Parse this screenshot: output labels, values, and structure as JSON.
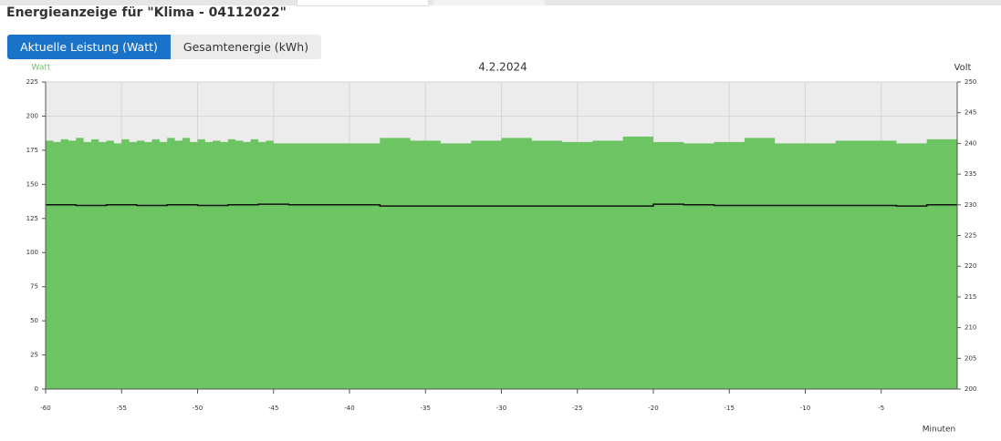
{
  "header": {
    "title": "Energieanzeige für \"Klima - 04112022\""
  },
  "tabs": [
    {
      "label": "Aktuelle Leistung (Watt)",
      "active": true
    },
    {
      "label": "Gesamtenergie (kWh)",
      "active": false
    }
  ],
  "chart_data": {
    "type": "area",
    "subtitle": "4.2.2024",
    "ylabel": "Watt",
    "y2label": "Volt",
    "xlabel": "Minuten",
    "xlim": [
      -60,
      0
    ],
    "xticks": [
      -60,
      -55,
      -50,
      -45,
      -40,
      -35,
      -30,
      -25,
      -20,
      -15,
      -10,
      -5
    ],
    "ylim": [
      0,
      225
    ],
    "yticks": [
      0,
      25,
      50,
      75,
      100,
      125,
      150,
      175,
      200,
      225
    ],
    "y2lim": [
      200,
      250
    ],
    "y2ticks": [
      200,
      205,
      210,
      215,
      220,
      225,
      230,
      235,
      240,
      245,
      250
    ],
    "grid": true,
    "step": true,
    "series": [
      {
        "color": "#6cc462",
        "axis": "y",
        "x": [
          -60,
          -59.5,
          -59,
          -58.5,
          -58,
          -57.5,
          -57,
          -56.5,
          -56,
          -55.5,
          -55,
          -54.5,
          -54,
          -53.5,
          -53,
          -52.5,
          -52,
          -51.5,
          -51,
          -50.5,
          -50,
          -49.5,
          -49,
          -48.5,
          -48,
          -47.5,
          -47,
          -46.5,
          -46,
          -45.5,
          -45,
          -40,
          -38,
          -36,
          -34,
          -32,
          -30,
          -28,
          -26,
          -24,
          -22,
          -20,
          -18,
          -16,
          -14,
          -12,
          -10,
          -8,
          -6,
          -4,
          -2
        ],
        "values": [
          182,
          181,
          183,
          182,
          184,
          181,
          183,
          181,
          182,
          180,
          183,
          181,
          182,
          181,
          183,
          181,
          184,
          182,
          184,
          181,
          183,
          181,
          182,
          181,
          183,
          182,
          181,
          183,
          181,
          182,
          180,
          180,
          184,
          182,
          180,
          182,
          184,
          182,
          181,
          182,
          185,
          181,
          180,
          181,
          184,
          180,
          180,
          182,
          182,
          180,
          183
        ]
      },
      {
        "color": "#111111",
        "axis": "y2",
        "x": [
          -60,
          -58,
          -56,
          -54,
          -52,
          -50,
          -48,
          -46,
          -44,
          -42,
          -40,
          -38,
          -36,
          -34,
          -32,
          -30,
          -28,
          -26,
          -24,
          -22,
          -20,
          -18,
          -16,
          -14,
          -12,
          -10,
          -8,
          -6,
          -4,
          -2,
          0
        ],
        "values": [
          230.0,
          229.9,
          230.0,
          229.9,
          230.0,
          229.9,
          230.0,
          230.1,
          230.0,
          230.0,
          230.0,
          229.8,
          229.8,
          229.8,
          229.8,
          229.8,
          229.8,
          229.8,
          229.8,
          229.8,
          230.1,
          230.0,
          229.9,
          229.9,
          229.9,
          229.9,
          229.9,
          229.9,
          229.8,
          230.0,
          230.0
        ]
      }
    ]
  }
}
